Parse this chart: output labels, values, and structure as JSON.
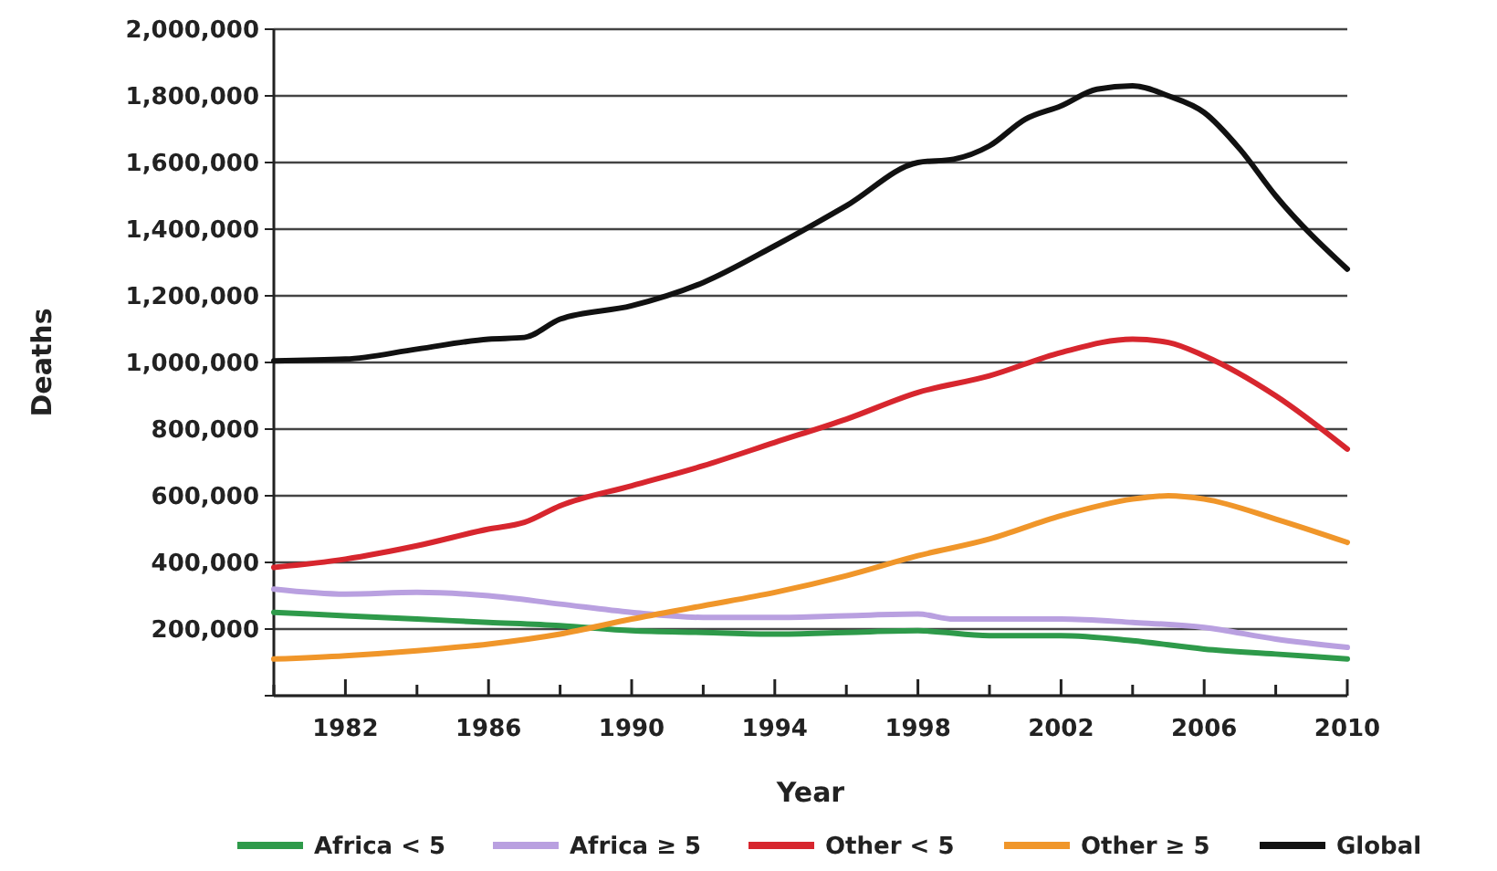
{
  "chart_data": {
    "type": "line",
    "xlabel": "Year",
    "ylabel": "Deaths",
    "xlim": [
      1980,
      2010
    ],
    "ylim": [
      0,
      2000000
    ],
    "xticks": [
      {
        "value": 1980,
        "label": null
      },
      1982,
      {
        "value": 1984,
        "label": null
      },
      1986,
      {
        "value": 1988,
        "label": null
      },
      1990,
      {
        "value": 1992,
        "label": null
      },
      1994,
      {
        "value": 1996,
        "label": null
      },
      1998,
      {
        "value": 2000,
        "label": null
      },
      2002,
      {
        "value": 2004,
        "label": null
      },
      2006,
      {
        "value": 2008,
        "label": null
      },
      2010
    ],
    "yticks": [
      {
        "value": 0,
        "label": null
      },
      {
        "value": 200000,
        "label": "200,000"
      },
      {
        "value": 400000,
        "label": "400,000"
      },
      {
        "value": 600000,
        "label": "600,000"
      },
      {
        "value": 800000,
        "label": "800,000"
      },
      {
        "value": 1000000,
        "label": "1,000,000"
      },
      {
        "value": 1200000,
        "label": "1,200,000"
      },
      {
        "value": 1400000,
        "label": "1,400,000"
      },
      {
        "value": 1600000,
        "label": "1,600,000"
      },
      {
        "value": 1800000,
        "label": "1,800,000"
      },
      {
        "value": 2000000,
        "label": "2,000,000"
      }
    ],
    "grid": "y",
    "legend": "bottom",
    "line_style": "solid",
    "marker": "none",
    "series": [
      {
        "name": "Africa < 5",
        "color": "#2e9a4a",
        "x": [
          1980,
          1982,
          1984,
          1986,
          1988,
          1990,
          1992,
          1994,
          1996,
          1998,
          2000,
          2002,
          2004,
          2006,
          2008,
          2010
        ],
        "values": [
          250000,
          240000,
          230000,
          220000,
          210000,
          195000,
          190000,
          185000,
          190000,
          195000,
          180000,
          180000,
          165000,
          140000,
          125000,
          110000
        ]
      },
      {
        "name": "Africa ≥ 5",
        "color": "#b9a0e0",
        "x": [
          1980,
          1982,
          1984,
          1986,
          1988,
          1990,
          1992,
          1994,
          1996,
          1998,
          1999,
          2002,
          2004,
          2006,
          2008,
          2010
        ],
        "values": [
          320000,
          305000,
          310000,
          300000,
          275000,
          250000,
          235000,
          235000,
          240000,
          245000,
          230000,
          230000,
          220000,
          205000,
          170000,
          145000
        ]
      },
      {
        "name": "Other < 5",
        "color": "#d7262e",
        "x": [
          1980,
          1982,
          1984,
          1986,
          1987,
          1988,
          1990,
          1992,
          1994,
          1996,
          1998,
          2000,
          2002,
          2004,
          2005,
          2006,
          2008,
          2010
        ],
        "values": [
          385000,
          410000,
          450000,
          500000,
          520000,
          570000,
          630000,
          690000,
          760000,
          830000,
          910000,
          960000,
          1030000,
          1070000,
          1060000,
          1020000,
          900000,
          740000
        ]
      },
      {
        "name": "Other ≥ 5",
        "color": "#f0962a",
        "x": [
          1980,
          1982,
          1984,
          1986,
          1988,
          1990,
          1992,
          1994,
          1996,
          1998,
          2000,
          2002,
          2004,
          2005,
          2006,
          2008,
          2010
        ],
        "values": [
          110000,
          120000,
          135000,
          155000,
          185000,
          230000,
          270000,
          310000,
          360000,
          420000,
          470000,
          540000,
          590000,
          600000,
          590000,
          530000,
          460000
        ]
      },
      {
        "name": "Global",
        "color": "#111111",
        "x": [
          1980,
          1982,
          1984,
          1986,
          1987,
          1988,
          1990,
          1992,
          1994,
          1996,
          1998,
          1999,
          2000,
          2001,
          2002,
          2003,
          2004,
          2005,
          2006,
          2007,
          2008,
          2010
        ],
        "values": [
          1005000,
          1010000,
          1040000,
          1070000,
          1075000,
          1130000,
          1170000,
          1240000,
          1350000,
          1470000,
          1600000,
          1610000,
          1650000,
          1730000,
          1770000,
          1820000,
          1830000,
          1800000,
          1750000,
          1640000,
          1500000,
          1280000
        ]
      }
    ]
  }
}
